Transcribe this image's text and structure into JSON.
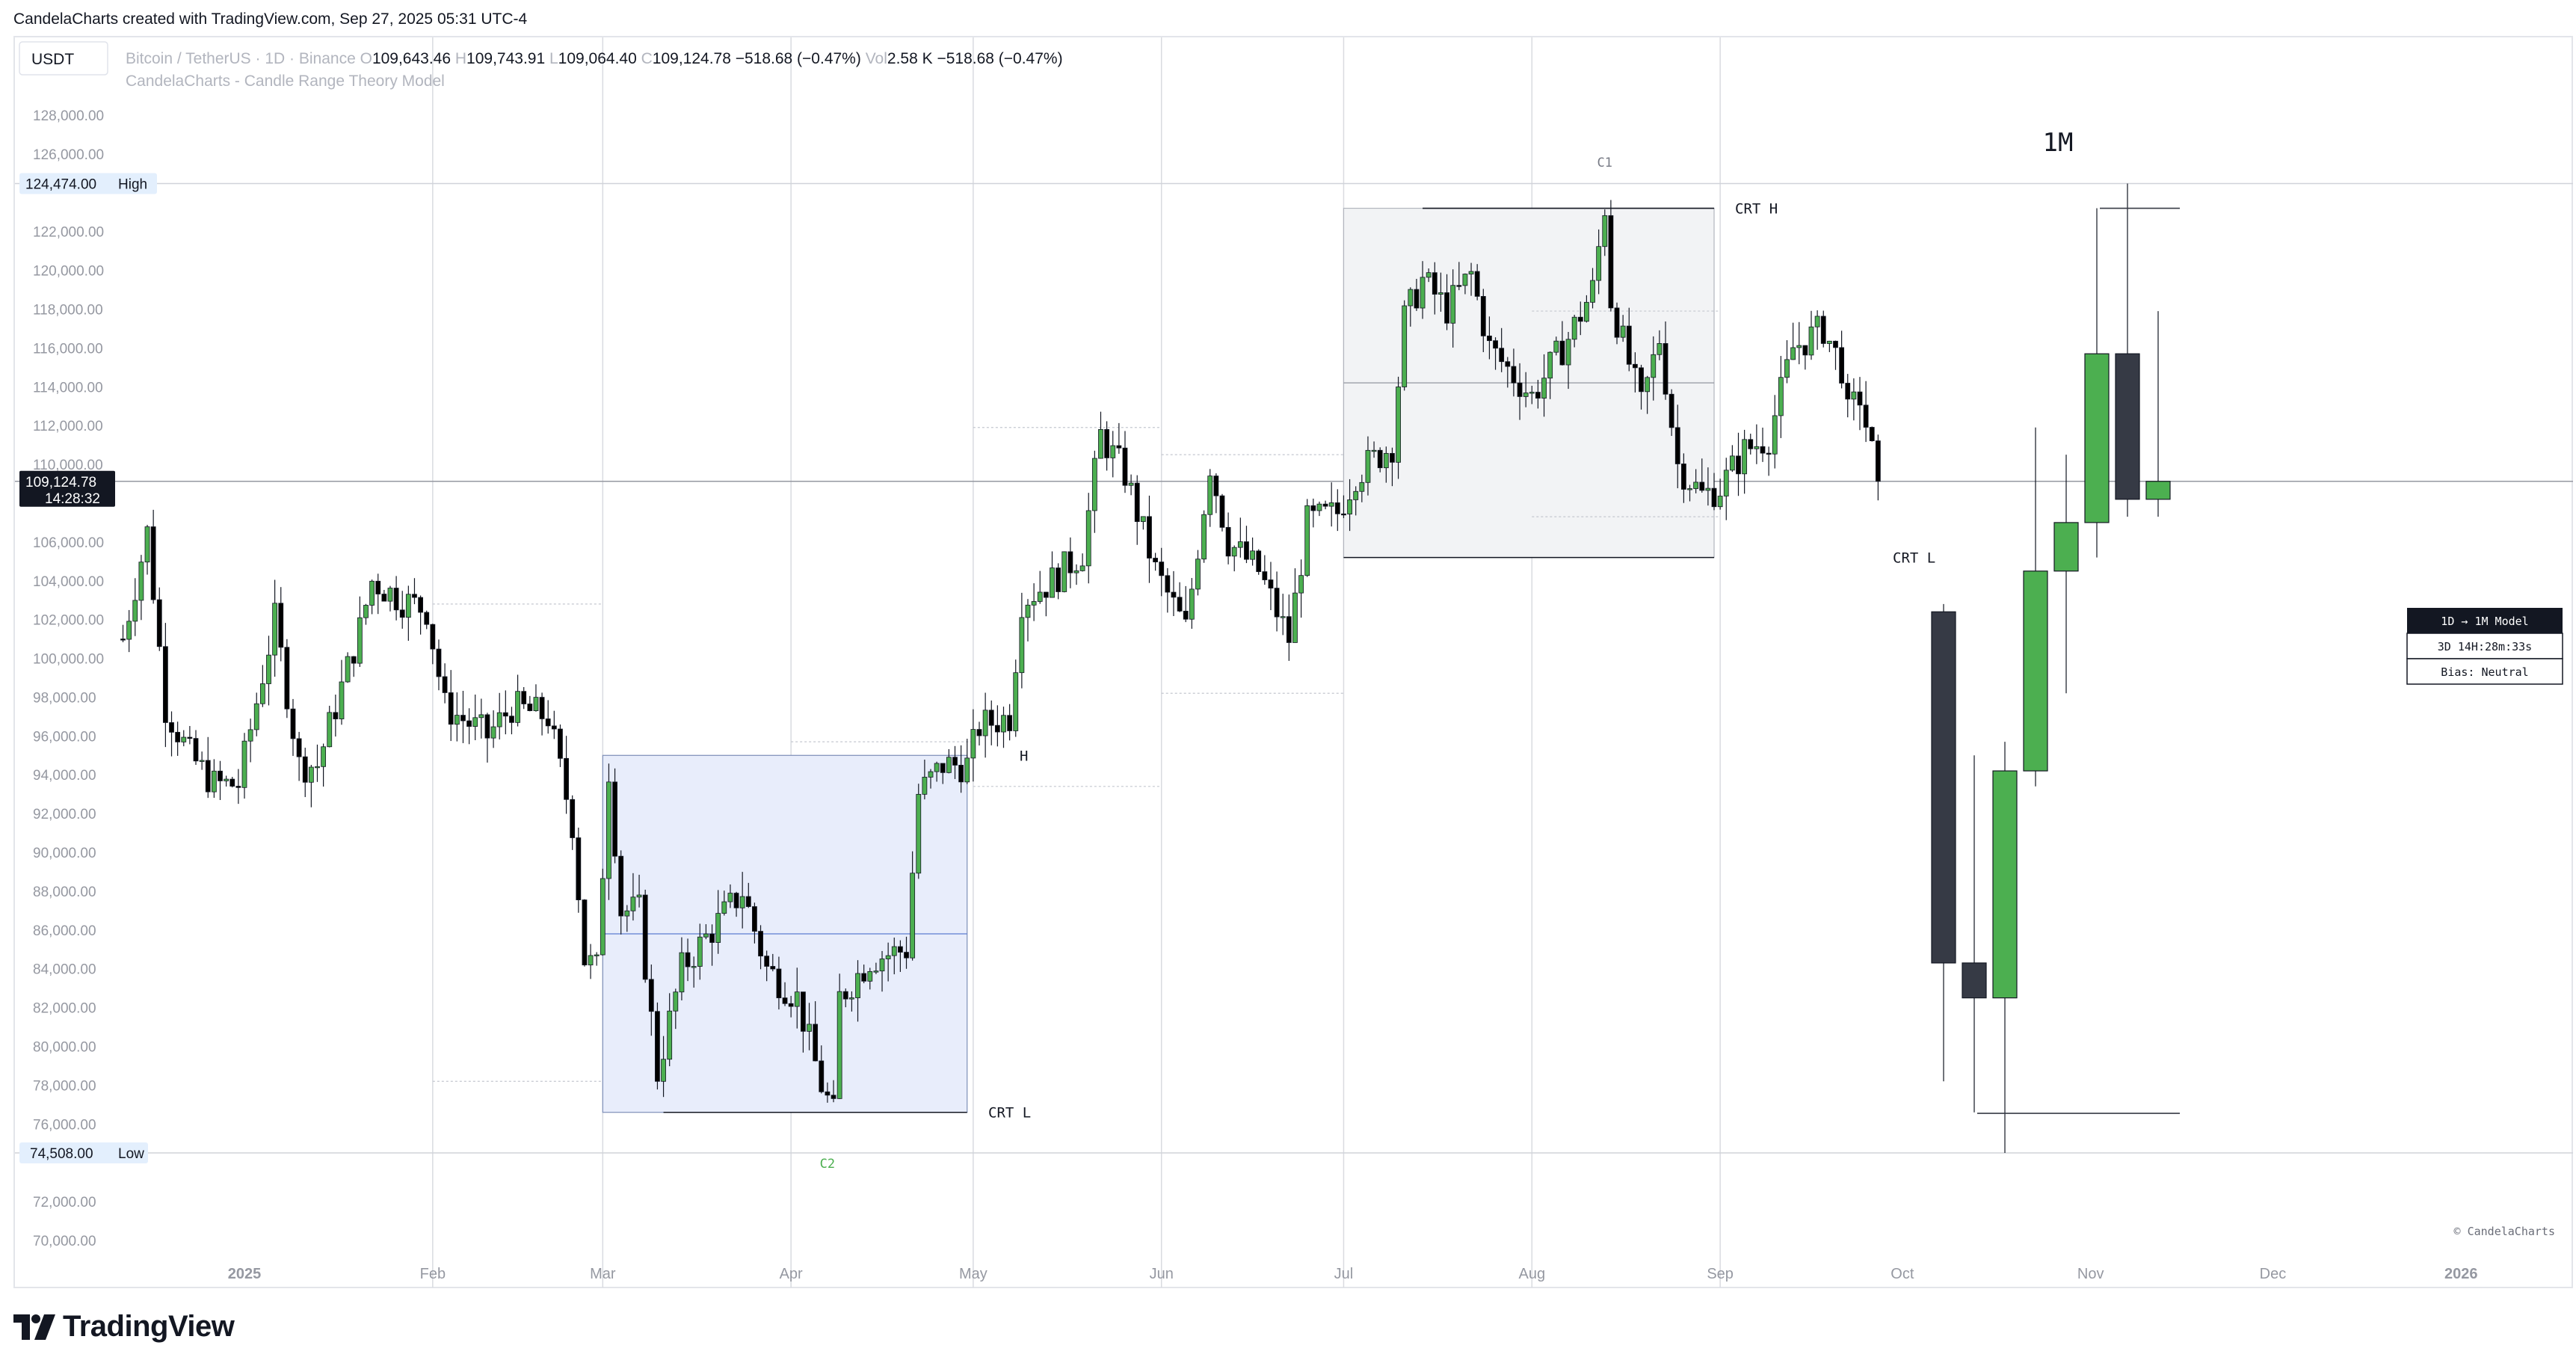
{
  "header": {
    "caption": "CandelaCharts created with TradingView.com, Sep 27, 2025 05:31 UTC-4"
  },
  "symbol_bar": {
    "quote_currency": "USDT",
    "title": "Bitcoin / TetherUS · 1D · Binance",
    "ohlc": [
      {
        "label": "O",
        "value": "109,643.46"
      },
      {
        "label": "H",
        "value": "109,743.91"
      },
      {
        "label": "L",
        "value": "109,064.40"
      },
      {
        "label": "C",
        "value": "109,124.78"
      }
    ],
    "change": "−518.68 (−0.47%)",
    "volume_label": "Vol",
    "volume_value": "2.58 K",
    "volume_change": "−518.68 (−0.47%)",
    "indicator": "CandelaCharts - Candle Range Theory Model"
  },
  "price_axis": {
    "labels": [
      "128,000.00",
      "126,000.00",
      "122,000.00",
      "120,000.00",
      "118,000.00",
      "116,000.00",
      "114,000.00",
      "112,000.00",
      "110,000.00",
      "106,000.00",
      "104,000.00",
      "102,000.00",
      "100,000.00",
      "98,000.00",
      "96,000.00",
      "94,000.00",
      "92,000.00",
      "90,000.00",
      "88,000.00",
      "86,000.00",
      "84,000.00",
      "82,000.00",
      "80,000.00",
      "78,000.00",
      "76,000.00",
      "72,000.00",
      "70,000.00"
    ],
    "high": {
      "value": "124,474.00",
      "label": "High"
    },
    "low": {
      "value": "74,508.00",
      "label": "Low"
    },
    "current": {
      "value": "109,124.78",
      "countdown": "14:28:32"
    }
  },
  "time_axis": {
    "labels": [
      "2025",
      "Feb",
      "Mar",
      "Apr",
      "May",
      "Jun",
      "Jul",
      "Aug",
      "Sep",
      "Oct",
      "Nov",
      "Dec",
      "2026"
    ]
  },
  "annotations": {
    "c1": "C1",
    "c2": "C2",
    "crt_h": "CRT H",
    "crt_l": "CRT L",
    "crt_h_partial": "H",
    "timeframe": "1M",
    "watermark": "© CandelaCharts"
  },
  "info_table": {
    "title": "1D → 1M Model",
    "countdown": "3D 14H:28m:33s",
    "bias": "Bias: Neutral"
  },
  "colors": {
    "bull": "#4caf50",
    "bear": "#000000",
    "big_bear": "#363a45",
    "box_blue": "#e8edfb",
    "box_gray": "#f2f3f5",
    "grid": "#d6d8dd",
    "label_bg": "#e3effd",
    "c2_green": "#4caf50"
  },
  "chart_data": {
    "type": "candlestick",
    "symbol": "Bitcoin / TetherUS",
    "timeframe": "1D",
    "exchange": "Binance",
    "ylim": [
      69000,
      130500
    ],
    "x_range": [
      "2024-12-11",
      "2026-01-19"
    ],
    "daily_anchors": [
      [
        "2024-12-12",
        101000
      ],
      [
        "2024-12-16",
        106500
      ],
      [
        "2024-12-19",
        97500
      ],
      [
        "2024-12-23",
        95000
      ],
      [
        "2024-12-27",
        93500
      ],
      [
        "2024-12-31",
        93500
      ],
      [
        "2025-01-06",
        102000
      ],
      [
        "2025-01-10",
        94500
      ],
      [
        "2025-01-13",
        94500
      ],
      [
        "2025-01-20",
        101500
      ],
      [
        "2025-01-22",
        104000
      ],
      [
        "2025-01-27",
        103000
      ],
      [
        "2025-01-31",
        102500
      ],
      [
        "2025-02-03",
        97500
      ],
      [
        "2025-02-10",
        96000
      ],
      [
        "2025-02-14",
        97500
      ],
      [
        "2025-02-20",
        97000
      ],
      [
        "2025-02-24",
        91500
      ],
      [
        "2025-02-26",
        84500
      ],
      [
        "2025-02-28",
        84000
      ],
      [
        "2025-03-02",
        94300
      ],
      [
        "2025-03-04",
        87000
      ],
      [
        "2025-03-07",
        87000
      ],
      [
        "2025-03-10",
        78600
      ],
      [
        "2025-03-14",
        84000
      ],
      [
        "2025-03-19",
        86000
      ],
      [
        "2025-03-24",
        88000
      ],
      [
        "2025-03-28",
        84000
      ],
      [
        "2025-04-02",
        82500
      ],
      [
        "2025-04-06",
        78000
      ],
      [
        "2025-04-08",
        76500
      ],
      [
        "2025-04-09",
        82500
      ],
      [
        "2025-04-14",
        84500
      ],
      [
        "2025-04-20",
        85000
      ],
      [
        "2025-04-22",
        93000
      ],
      [
        "2025-04-26",
        94500
      ],
      [
        "2025-04-30",
        94500
      ],
      [
        "2025-05-02",
        96500
      ],
      [
        "2025-05-07",
        97000
      ],
      [
        "2025-05-09",
        103000
      ],
      [
        "2025-05-14",
        104000
      ],
      [
        "2025-05-19",
        105500
      ],
      [
        "2025-05-22",
        111500
      ],
      [
        "2025-05-26",
        109500
      ],
      [
        "2025-05-31",
        104500
      ],
      [
        "2025-06-05",
        101500
      ],
      [
        "2025-06-09",
        110000
      ],
      [
        "2025-06-12",
        106000
      ],
      [
        "2025-06-17",
        104500
      ],
      [
        "2025-06-22",
        101000
      ],
      [
        "2025-06-25",
        107000
      ],
      [
        "2025-06-30",
        107500
      ],
      [
        "2025-07-03",
        109500
      ],
      [
        "2025-07-09",
        111000
      ],
      [
        "2025-07-11",
        117500
      ],
      [
        "2025-07-14",
        119500
      ],
      [
        "2025-07-18",
        118000
      ],
      [
        "2025-07-22",
        119800
      ],
      [
        "2025-07-25",
        116000
      ],
      [
        "2025-08-01",
        113500
      ],
      [
        "2025-08-07",
        116500
      ],
      [
        "2025-08-11",
        119000
      ],
      [
        "2025-08-13",
        123300
      ],
      [
        "2025-08-14",
        118500
      ],
      [
        "2025-08-19",
        113000
      ],
      [
        "2025-08-22",
        116500
      ],
      [
        "2025-08-25",
        110000
      ],
      [
        "2025-08-29",
        108400
      ],
      [
        "2025-09-01",
        108800
      ],
      [
        "2025-09-05",
        110700
      ],
      [
        "2025-09-09",
        111400
      ],
      [
        "2025-09-13",
        116000
      ],
      [
        "2025-09-18",
        117000
      ],
      [
        "2025-09-21",
        115000
      ],
      [
        "2025-09-22",
        112500
      ],
      [
        "2025-09-24",
        113500
      ],
      [
        "2025-09-27",
        109124.78
      ]
    ],
    "monthly_htf": [
      {
        "month": "2025-02",
        "open": 102400,
        "high": 102800,
        "low": 78200,
        "close": 84300
      },
      {
        "month": "2025-03",
        "open": 84300,
        "high": 95000,
        "low": 76600,
        "close": 82500
      },
      {
        "month": "2025-04",
        "open": 82500,
        "high": 95700,
        "low": 74508,
        "close": 94200
      },
      {
        "month": "2025-05",
        "open": 94200,
        "high": 111900,
        "low": 93400,
        "close": 104500
      },
      {
        "month": "2025-06",
        "open": 104500,
        "high": 110500,
        "low": 98200,
        "close": 107000
      },
      {
        "month": "2025-07",
        "open": 107000,
        "high": 123200,
        "low": 105200,
        "close": 115700
      },
      {
        "month": "2025-08",
        "open": 115700,
        "high": 124474,
        "low": 107300,
        "close": 108200
      },
      {
        "month": "2025-09",
        "open": 108200,
        "high": 117900,
        "low": 107300,
        "close": 109124.78
      }
    ],
    "crt_ranges": [
      {
        "from": "2025-03-01",
        "to": "2025-04-30",
        "high": 95000,
        "low": 76600,
        "mid": 85800
      },
      {
        "from": "2025-07-01",
        "to": "2025-08-31",
        "high": 123200,
        "low": 105200,
        "mid": 114200
      }
    ],
    "high": 124474,
    "low": 74508,
    "last": 109124.78
  }
}
